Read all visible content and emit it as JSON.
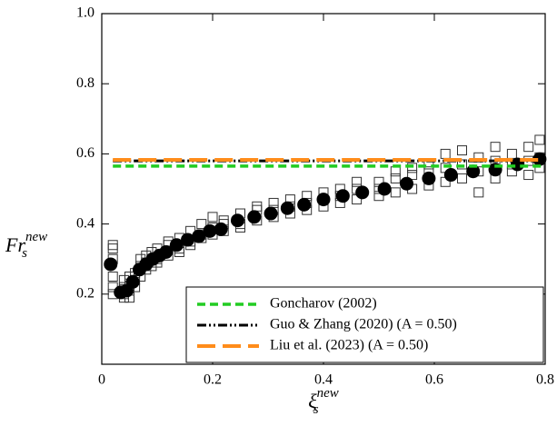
{
  "chart_data": {
    "type": "scatter",
    "x_label": {
      "base": "ξ",
      "sub": "s",
      "sup": "new"
    },
    "y_label": {
      "base": "Fr",
      "sub": "s",
      "sup": "new"
    },
    "xlim": [
      0,
      0.8
    ],
    "ylim": [
      0,
      1
    ],
    "xticks": [
      0,
      0.2,
      0.4,
      0.6,
      0.8
    ],
    "yticks": [
      0.2,
      0.4,
      0.6,
      0.8,
      {
        "value": 1,
        "label": "1.0"
      }
    ],
    "legend_position": "lower right",
    "series": [
      {
        "marker": "open-square",
        "color": "#333333",
        "x": [
          0.02,
          0.02,
          0.02,
          0.02,
          0.02,
          0.02,
          0.04,
          0.04,
          0.04,
          0.04,
          0.05,
          0.05,
          0.05,
          0.05,
          0.06,
          0.06,
          0.06,
          0.07,
          0.07,
          0.07,
          0.08,
          0.08,
          0.08,
          0.09,
          0.09,
          0.09,
          0.1,
          0.1,
          0.1,
          0.12,
          0.12,
          0.12,
          0.14,
          0.14,
          0.14,
          0.16,
          0.16,
          0.16,
          0.18,
          0.18,
          0.18,
          0.2,
          0.2,
          0.2,
          0.22,
          0.22,
          0.22,
          0.25,
          0.25,
          0.25,
          0.28,
          0.28,
          0.28,
          0.31,
          0.31,
          0.31,
          0.34,
          0.34,
          0.34,
          0.37,
          0.37,
          0.37,
          0.4,
          0.4,
          0.4,
          0.43,
          0.43,
          0.43,
          0.46,
          0.46,
          0.46,
          0.5,
          0.5,
          0.5,
          0.53,
          0.53,
          0.53,
          0.56,
          0.56,
          0.56,
          0.59,
          0.59,
          0.59,
          0.62,
          0.62,
          0.62,
          0.65,
          0.65,
          0.65,
          0.68,
          0.68,
          0.68,
          0.71,
          0.71,
          0.71,
          0.74,
          0.74,
          0.74,
          0.77,
          0.77,
          0.77,
          0.79,
          0.79,
          0.79
        ],
        "values": [
          0.33,
          0.34,
          0.3,
          0.25,
          0.22,
          0.2,
          0.19,
          0.2,
          0.22,
          0.24,
          0.19,
          0.21,
          0.23,
          0.25,
          0.22,
          0.26,
          0.24,
          0.25,
          0.28,
          0.3,
          0.27,
          0.29,
          0.31,
          0.28,
          0.32,
          0.3,
          0.3,
          0.33,
          0.29,
          0.31,
          0.34,
          0.35,
          0.33,
          0.36,
          0.32,
          0.35,
          0.38,
          0.34,
          0.36,
          0.4,
          0.37,
          0.37,
          0.39,
          0.42,
          0.38,
          0.41,
          0.4,
          0.4,
          0.43,
          0.39,
          0.41,
          0.44,
          0.45,
          0.42,
          0.46,
          0.44,
          0.43,
          0.47,
          0.45,
          0.44,
          0.48,
          0.46,
          0.45,
          0.49,
          0.47,
          0.46,
          0.5,
          0.48,
          0.47,
          0.5,
          0.52,
          0.48,
          0.52,
          0.5,
          0.49,
          0.53,
          0.55,
          0.5,
          0.54,
          0.56,
          0.51,
          0.55,
          0.57,
          0.52,
          0.56,
          0.6,
          0.53,
          0.57,
          0.61,
          0.49,
          0.55,
          0.59,
          0.53,
          0.58,
          0.62,
          0.55,
          0.57,
          0.6,
          0.54,
          0.58,
          0.62,
          0.56,
          0.59,
          0.64
        ]
      },
      {
        "marker": "filled-circle",
        "color": "#000000",
        "x": [
          0.016,
          0.034,
          0.045,
          0.056,
          0.068,
          0.08,
          0.092,
          0.104,
          0.116,
          0.135,
          0.155,
          0.175,
          0.195,
          0.215,
          0.245,
          0.275,
          0.305,
          0.335,
          0.365,
          0.4,
          0.435,
          0.47,
          0.51,
          0.55,
          0.59,
          0.63,
          0.67,
          0.71,
          0.75,
          0.79
        ],
        "values": [
          0.285,
          0.205,
          0.21,
          0.235,
          0.27,
          0.285,
          0.3,
          0.31,
          0.32,
          0.34,
          0.355,
          0.365,
          0.38,
          0.385,
          0.41,
          0.42,
          0.43,
          0.445,
          0.455,
          0.47,
          0.48,
          0.49,
          0.5,
          0.515,
          0.53,
          0.54,
          0.55,
          0.555,
          0.57,
          0.585
        ]
      },
      {
        "name": "Goncharov (2002)",
        "marker": "line",
        "dash": "short",
        "color": "#22cc22",
        "x": [
          0.02,
          0.8
        ],
        "values": [
          0.565,
          0.565
        ]
      },
      {
        "name": "Guo & Zhang (2020) (A = 0.50)",
        "marker": "line",
        "dash": "dash-dot",
        "color": "#000000",
        "x": [
          0.02,
          0.8
        ],
        "values": [
          0.58,
          0.58
        ]
      },
      {
        "name": "Liu et al. (2023) (A = 0.50)",
        "marker": "line",
        "dash": "long",
        "color": "#ff8c1a",
        "x": [
          0.02,
          0.8
        ],
        "values": [
          0.583,
          0.583
        ]
      }
    ]
  }
}
